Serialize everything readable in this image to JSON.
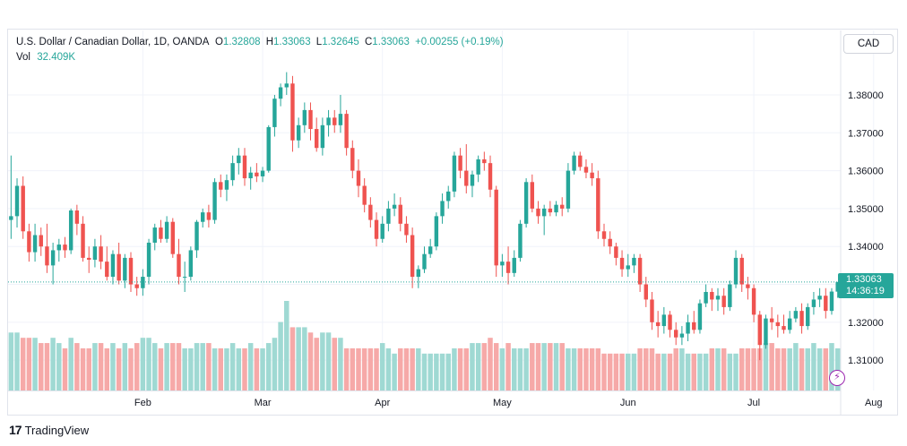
{
  "header": {
    "symbol": "U.S. Dollar / Canadian Dollar, 1D, OANDA",
    "o_label": "O",
    "o_value": "1.32808",
    "h_label": "H",
    "h_value": "1.33063",
    "l_label": "L",
    "l_value": "1.32645",
    "c_label": "C",
    "c_value": "1.33063",
    "change": "+0.00255 (+0.19%)",
    "vol_label": "Vol",
    "vol_value": "32.409K"
  },
  "currency_label": "CAD",
  "last_price": {
    "value": "1.33063",
    "countdown": "14:36:19"
  },
  "brand": {
    "mark": "17",
    "name": "TradingView"
  },
  "colors": {
    "up": "#26a69a",
    "down": "#ef5350",
    "up_vol": "#9fd9d3",
    "down_vol": "#f6a9a8",
    "grid": "#f0f3fa"
  },
  "chart_data": {
    "type": "candlestick",
    "ylim": [
      1.302,
      1.3885
    ],
    "y_ticks": [
      "1.38000",
      "1.37000",
      "1.36000",
      "1.35000",
      "1.34000",
      "1.33000",
      "1.32000",
      "1.31000"
    ],
    "y_tick_values": [
      1.38,
      1.37,
      1.36,
      1.35,
      1.34,
      1.33,
      1.32,
      1.31
    ],
    "x_ticks": [
      "Feb",
      "Mar",
      "Apr",
      "May",
      "Jun",
      "Jul",
      "Aug"
    ],
    "x_tick_index": [
      22,
      42,
      62,
      82,
      103,
      124,
      144
    ],
    "last_price": 1.33063,
    "candles": [
      [
        1.347,
        1.364,
        1.342,
        1.348
      ],
      [
        1.348,
        1.358,
        1.345,
        1.356
      ],
      [
        1.356,
        1.3585,
        1.342,
        1.344
      ],
      [
        1.344,
        1.346,
        1.336,
        1.3385
      ],
      [
        1.3385,
        1.346,
        1.336,
        1.343
      ],
      [
        1.343,
        1.345,
        1.3375,
        1.34
      ],
      [
        1.34,
        1.346,
        1.333,
        1.335
      ],
      [
        1.335,
        1.341,
        1.33,
        1.339
      ],
      [
        1.339,
        1.342,
        1.336,
        1.3405
      ],
      [
        1.3405,
        1.3425,
        1.337,
        1.339
      ],
      [
        1.339,
        1.35,
        1.338,
        1.3495
      ],
      [
        1.3495,
        1.351,
        1.343,
        1.346
      ],
      [
        1.346,
        1.348,
        1.336,
        1.337
      ],
      [
        1.337,
        1.34,
        1.333,
        1.3365
      ],
      [
        1.3365,
        1.342,
        1.3345,
        1.34
      ],
      [
        1.34,
        1.343,
        1.334,
        1.336
      ],
      [
        1.336,
        1.34,
        1.331,
        1.332
      ],
      [
        1.332,
        1.339,
        1.33,
        1.338
      ],
      [
        1.338,
        1.341,
        1.33,
        1.331
      ],
      [
        1.331,
        1.338,
        1.329,
        1.337
      ],
      [
        1.337,
        1.3385,
        1.328,
        1.33
      ],
      [
        1.33,
        1.332,
        1.327,
        1.329
      ],
      [
        1.329,
        1.334,
        1.327,
        1.332
      ],
      [
        1.332,
        1.342,
        1.33,
        1.341
      ],
      [
        1.341,
        1.346,
        1.339,
        1.345
      ],
      [
        1.345,
        1.347,
        1.341,
        1.342
      ],
      [
        1.342,
        1.348,
        1.341,
        1.3465
      ],
      [
        1.3465,
        1.3475,
        1.337,
        1.338
      ],
      [
        1.338,
        1.342,
        1.33,
        1.332
      ],
      [
        1.332,
        1.336,
        1.328,
        1.332
      ],
      [
        1.332,
        1.34,
        1.331,
        1.339
      ],
      [
        1.339,
        1.347,
        1.337,
        1.3465
      ],
      [
        1.3465,
        1.35,
        1.345,
        1.349
      ],
      [
        1.349,
        1.351,
        1.345,
        1.347
      ],
      [
        1.347,
        1.358,
        1.346,
        1.357
      ],
      [
        1.357,
        1.359,
        1.353,
        1.355
      ],
      [
        1.355,
        1.359,
        1.352,
        1.3575
      ],
      [
        1.3575,
        1.364,
        1.356,
        1.362
      ],
      [
        1.362,
        1.366,
        1.359,
        1.364
      ],
      [
        1.364,
        1.366,
        1.356,
        1.358
      ],
      [
        1.358,
        1.361,
        1.355,
        1.3595
      ],
      [
        1.3595,
        1.362,
        1.357,
        1.3585
      ],
      [
        1.3585,
        1.361,
        1.357,
        1.36
      ],
      [
        1.36,
        1.372,
        1.3595,
        1.3715
      ],
      [
        1.3715,
        1.38,
        1.369,
        1.379
      ],
      [
        1.379,
        1.383,
        1.377,
        1.382
      ],
      [
        1.382,
        1.386,
        1.38,
        1.383
      ],
      [
        1.383,
        1.385,
        1.365,
        1.368
      ],
      [
        1.368,
        1.374,
        1.366,
        1.372
      ],
      [
        1.372,
        1.378,
        1.37,
        1.376
      ],
      [
        1.376,
        1.378,
        1.368,
        1.371
      ],
      [
        1.371,
        1.374,
        1.365,
        1.366
      ],
      [
        1.366,
        1.374,
        1.364,
        1.372
      ],
      [
        1.372,
        1.376,
        1.369,
        1.374
      ],
      [
        1.374,
        1.376,
        1.37,
        1.372
      ],
      [
        1.372,
        1.38,
        1.37,
        1.375
      ],
      [
        1.375,
        1.376,
        1.364,
        1.366
      ],
      [
        1.366,
        1.368,
        1.358,
        1.36
      ],
      [
        1.36,
        1.363,
        1.353,
        1.356
      ],
      [
        1.356,
        1.358,
        1.349,
        1.351
      ],
      [
        1.351,
        1.353,
        1.345,
        1.347
      ],
      [
        1.347,
        1.349,
        1.34,
        1.342
      ],
      [
        1.342,
        1.348,
        1.341,
        1.346
      ],
      [
        1.346,
        1.352,
        1.344,
        1.35
      ],
      [
        1.35,
        1.354,
        1.348,
        1.351
      ],
      [
        1.351,
        1.353,
        1.344,
        1.346
      ],
      [
        1.346,
        1.348,
        1.341,
        1.343
      ],
      [
        1.343,
        1.345,
        1.329,
        1.332
      ],
      [
        1.332,
        1.335,
        1.329,
        1.334
      ],
      [
        1.334,
        1.34,
        1.333,
        1.338
      ],
      [
        1.338,
        1.342,
        1.337,
        1.34
      ],
      [
        1.34,
        1.349,
        1.339,
        1.348
      ],
      [
        1.348,
        1.354,
        1.346,
        1.352
      ],
      [
        1.352,
        1.356,
        1.35,
        1.3545
      ],
      [
        1.3545,
        1.365,
        1.353,
        1.364
      ],
      [
        1.364,
        1.366,
        1.358,
        1.36
      ],
      [
        1.36,
        1.367,
        1.354,
        1.356
      ],
      [
        1.356,
        1.36,
        1.353,
        1.359
      ],
      [
        1.359,
        1.364,
        1.357,
        1.363
      ],
      [
        1.363,
        1.365,
        1.36,
        1.362
      ],
      [
        1.362,
        1.364,
        1.353,
        1.355
      ],
      [
        1.355,
        1.356,
        1.332,
        1.335
      ],
      [
        1.335,
        1.338,
        1.332,
        1.336
      ],
      [
        1.336,
        1.34,
        1.33,
        1.333
      ],
      [
        1.333,
        1.339,
        1.332,
        1.337
      ],
      [
        1.337,
        1.347,
        1.336,
        1.346
      ],
      [
        1.346,
        1.358,
        1.345,
        1.357
      ],
      [
        1.357,
        1.359,
        1.349,
        1.35
      ],
      [
        1.35,
        1.352,
        1.346,
        1.348
      ],
      [
        1.348,
        1.351,
        1.343,
        1.35
      ],
      [
        1.35,
        1.352,
        1.348,
        1.349
      ],
      [
        1.349,
        1.352,
        1.348,
        1.351
      ],
      [
        1.351,
        1.353,
        1.348,
        1.35
      ],
      [
        1.35,
        1.362,
        1.349,
        1.36
      ],
      [
        1.36,
        1.365,
        1.359,
        1.364
      ],
      [
        1.364,
        1.365,
        1.36,
        1.361
      ],
      [
        1.361,
        1.363,
        1.358,
        1.3595
      ],
      [
        1.3595,
        1.362,
        1.356,
        1.358
      ],
      [
        1.358,
        1.36,
        1.342,
        1.344
      ],
      [
        1.344,
        1.346,
        1.34,
        1.342
      ],
      [
        1.342,
        1.344,
        1.338,
        1.34
      ],
      [
        1.34,
        1.341,
        1.335,
        1.337
      ],
      [
        1.337,
        1.339,
        1.332,
        1.334
      ],
      [
        1.334,
        1.338,
        1.332,
        1.335
      ],
      [
        1.335,
        1.338,
        1.333,
        1.337
      ],
      [
        1.337,
        1.338,
        1.328,
        1.33
      ],
      [
        1.33,
        1.332,
        1.324,
        1.326
      ],
      [
        1.326,
        1.328,
        1.318,
        1.32
      ],
      [
        1.32,
        1.323,
        1.316,
        1.319
      ],
      [
        1.319,
        1.324,
        1.317,
        1.322
      ],
      [
        1.322,
        1.323,
        1.316,
        1.318
      ],
      [
        1.318,
        1.32,
        1.314,
        1.316
      ],
      [
        1.316,
        1.319,
        1.314,
        1.317
      ],
      [
        1.317,
        1.322,
        1.315,
        1.32
      ],
      [
        1.32,
        1.323,
        1.317,
        1.318
      ],
      [
        1.318,
        1.326,
        1.317,
        1.325
      ],
      [
        1.325,
        1.33,
        1.324,
        1.328
      ],
      [
        1.328,
        1.329,
        1.323,
        1.326
      ],
      [
        1.326,
        1.329,
        1.323,
        1.327
      ],
      [
        1.327,
        1.329,
        1.322,
        1.324
      ],
      [
        1.324,
        1.331,
        1.323,
        1.33
      ],
      [
        1.33,
        1.339,
        1.329,
        1.337
      ],
      [
        1.337,
        1.338,
        1.328,
        1.33
      ],
      [
        1.33,
        1.332,
        1.326,
        1.329
      ],
      [
        1.329,
        1.33,
        1.32,
        1.322
      ],
      [
        1.322,
        1.323,
        1.31,
        1.314
      ],
      [
        1.314,
        1.322,
        1.313,
        1.321
      ],
      [
        1.321,
        1.324,
        1.318,
        1.32
      ],
      [
        1.32,
        1.322,
        1.316,
        1.319
      ],
      [
        1.319,
        1.322,
        1.317,
        1.318
      ],
      [
        1.318,
        1.323,
        1.317,
        1.321
      ],
      [
        1.321,
        1.324,
        1.32,
        1.323
      ],
      [
        1.323,
        1.325,
        1.317,
        1.319
      ],
      [
        1.319,
        1.325,
        1.318,
        1.324
      ],
      [
        1.324,
        1.328,
        1.322,
        1.326
      ],
      [
        1.326,
        1.329,
        1.324,
        1.327
      ],
      [
        1.327,
        1.329,
        1.321,
        1.323
      ],
      [
        1.323,
        1.329,
        1.322,
        1.3281
      ],
      [
        1.32808,
        1.33063,
        1.32645,
        1.33063
      ]
    ],
    "volumes": [
      11,
      11,
      10,
      10,
      10,
      9,
      9,
      10,
      9,
      8,
      10,
      9,
      8,
      8,
      9,
      9,
      8,
      9,
      8,
      9,
      8,
      9,
      10,
      10,
      9,
      8,
      9,
      9,
      9,
      8,
      8,
      9,
      9,
      9,
      8,
      8,
      8,
      9,
      8,
      8,
      9,
      8,
      8,
      9,
      10,
      13,
      17,
      12,
      12,
      12,
      11,
      10,
      11,
      11,
      10,
      10,
      8,
      8,
      8,
      8,
      8,
      8,
      9,
      8,
      7,
      8,
      8,
      8,
      8,
      7,
      7,
      7,
      7,
      7,
      8,
      8,
      8,
      9,
      9,
      9,
      10,
      9,
      8,
      9,
      8,
      8,
      8,
      9,
      9,
      9,
      9,
      9,
      9,
      8,
      8,
      8,
      8,
      8,
      8,
      7,
      7,
      7,
      7,
      7,
      7,
      8,
      8,
      8,
      7,
      7,
      7,
      8,
      8,
      7,
      7,
      7,
      7,
      8,
      8,
      8,
      7,
      7,
      8,
      8,
      8,
      8,
      9,
      9,
      8,
      8,
      8,
      9,
      8,
      8,
      9,
      8,
      8,
      9,
      8
    ]
  }
}
